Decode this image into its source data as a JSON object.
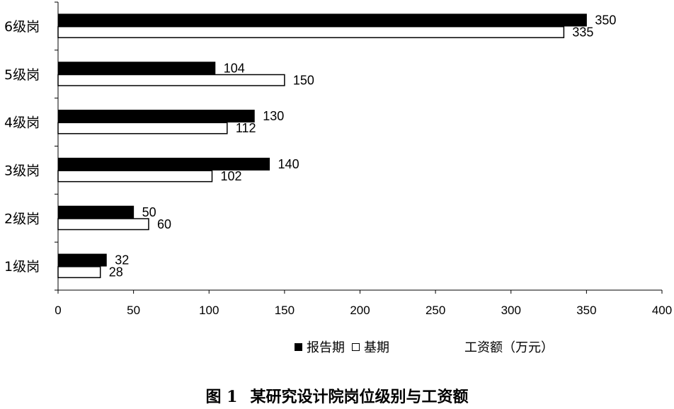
{
  "chart_data": {
    "type": "bar",
    "orientation": "horizontal",
    "categories": [
      "1级岗",
      "2级岗",
      "3级岗",
      "4级岗",
      "5级岗",
      "6级岗"
    ],
    "series": [
      {
        "name": "报告期",
        "values": [
          32,
          50,
          140,
          130,
          104,
          350
        ],
        "fill": "#000000",
        "stroke": "#000000"
      },
      {
        "name": "基期",
        "values": [
          28,
          60,
          102,
          112,
          150,
          335
        ],
        "fill": "#ffffff",
        "stroke": "#000000"
      }
    ],
    "xlim": [
      0,
      400
    ],
    "xticks": [
      0,
      50,
      100,
      150,
      200,
      250,
      300,
      350,
      400
    ],
    "xlabel": "工资额（万元）",
    "grid": false,
    "legend_position": "bottom"
  },
  "caption": {
    "figure_number": "图 1",
    "title": "某研究设计院岗位级别与工资额"
  }
}
